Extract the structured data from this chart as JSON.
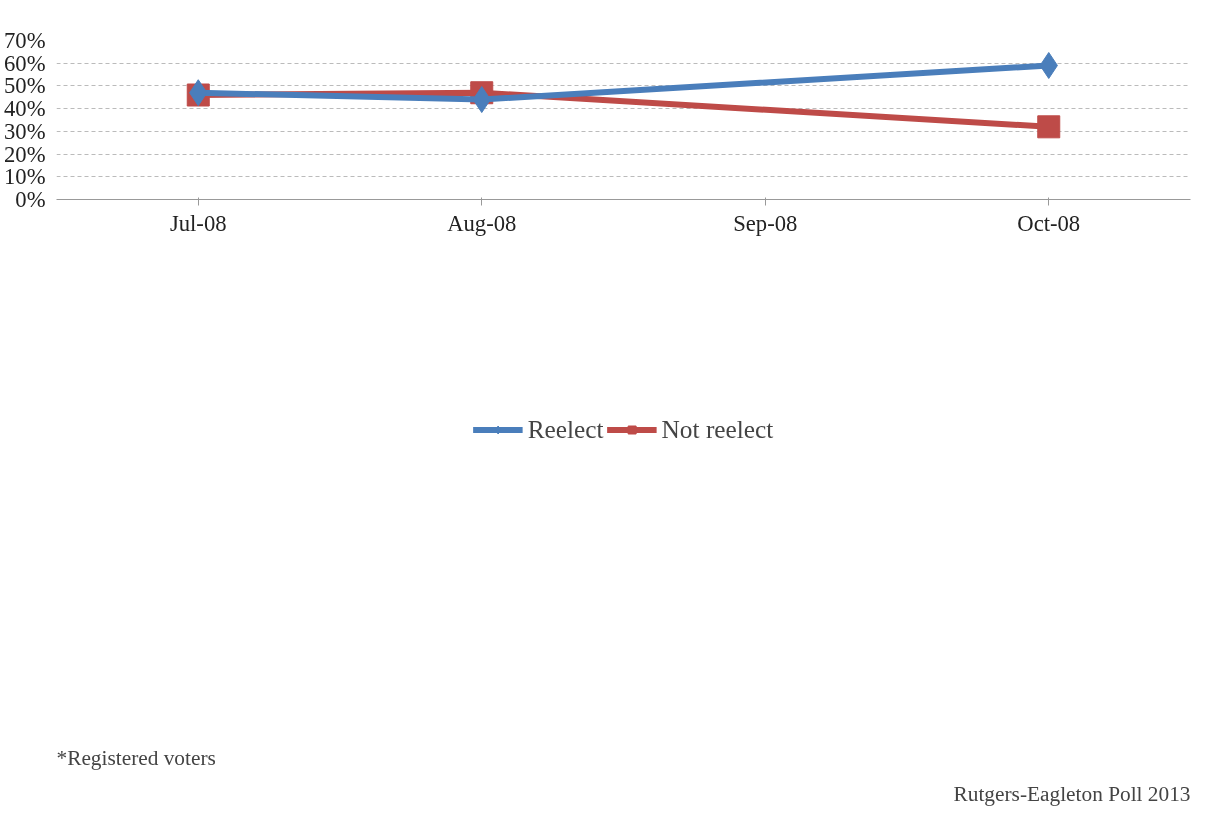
{
  "chart_data": {
    "type": "line",
    "categories": [
      "Jul-08",
      "Aug-08",
      "Sep-08",
      "Oct-08"
    ],
    "series": [
      {
        "name": "Reelect",
        "color": "#4a7ebb",
        "values": [
          47,
          44,
          null,
          59
        ],
        "marker": "diamond"
      },
      {
        "name": "Not reelect",
        "color": "#be4b48",
        "values": [
          46,
          47,
          null,
          32
        ],
        "marker": "square"
      }
    ],
    "ylim": [
      0,
      70
    ],
    "yticks": [
      {
        "value": 0,
        "label": "0%"
      },
      {
        "value": 10,
        "label": "10%"
      },
      {
        "value": 20,
        "label": "20%"
      },
      {
        "value": 30,
        "label": "30%"
      },
      {
        "value": 40,
        "label": "40%"
      },
      {
        "value": 50,
        "label": "50%"
      },
      {
        "value": 60,
        "label": "60%"
      },
      {
        "value": 70,
        "label": "70%"
      }
    ],
    "grid": "y",
    "legend": "bottom",
    "line_style": "solid",
    "annotations": [
      "*Registered voters",
      "Rutgers-Eagleton Poll 2013"
    ]
  }
}
